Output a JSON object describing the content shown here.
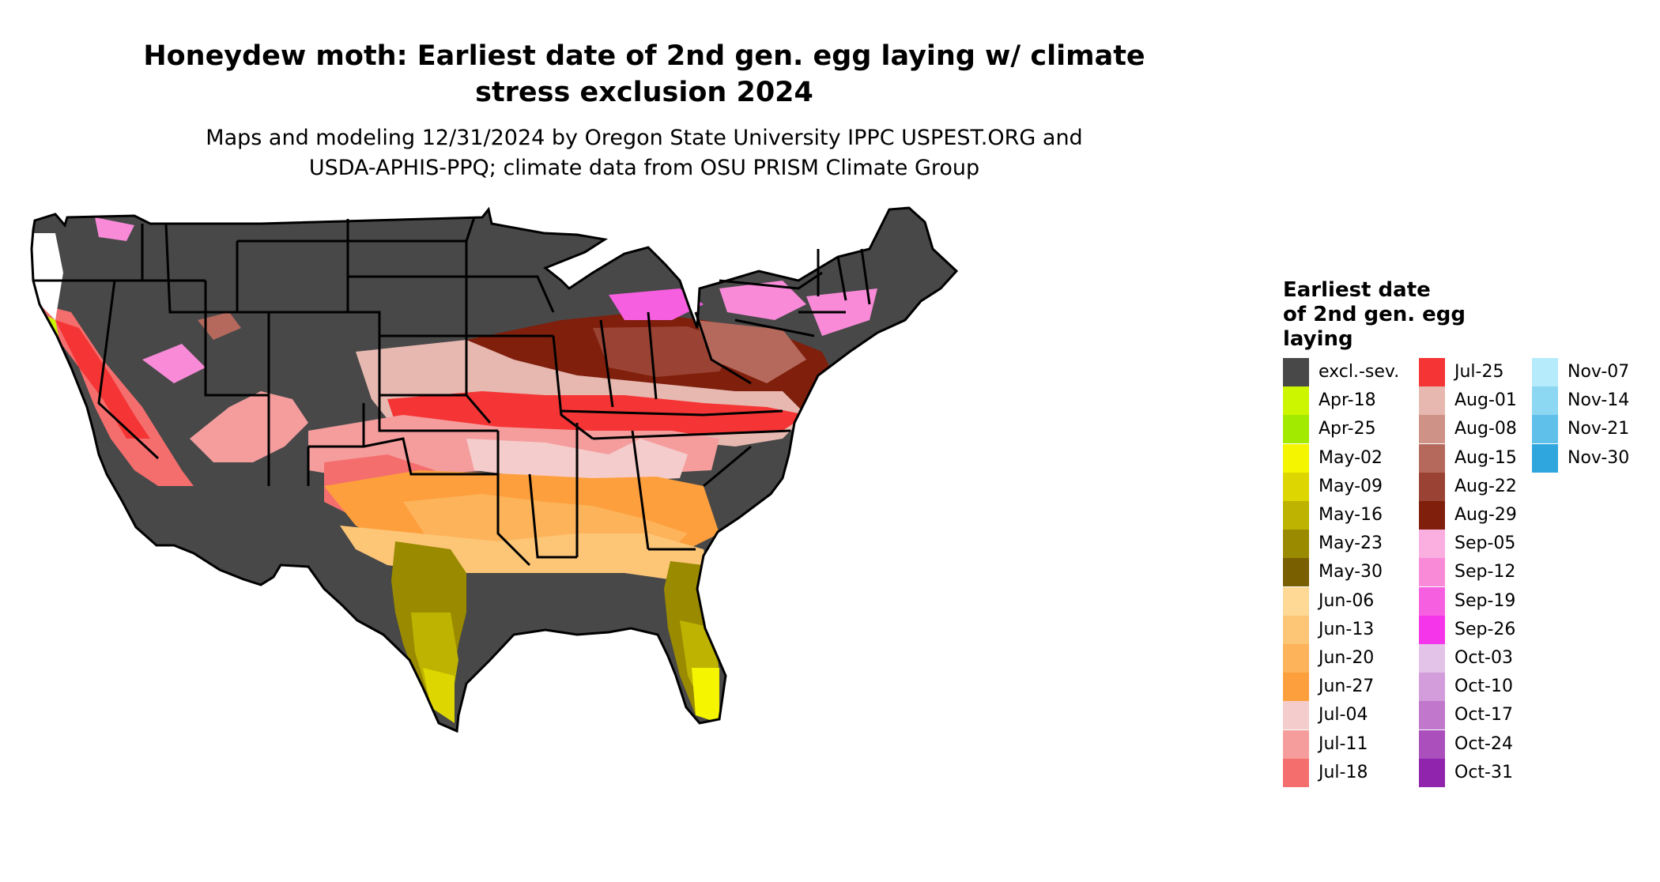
{
  "title_line1": "Honeydew moth: Earliest date of 2nd gen. egg laying w/ climate",
  "title_line2": "stress exclusion 2024",
  "subtitle_line1": "Maps and modeling 12/31/2024 by Oregon State University IPPC USPEST.ORG and",
  "subtitle_line2": "USDA-APHIS-PPQ; climate data from OSU PRISM Climate Group",
  "legend": {
    "title_line1": "Earliest date",
    "title_line2": "of 2nd gen. egg",
    "title_line3": "laying",
    "col1": [
      {
        "label": "excl.-sev.",
        "color": "#484848"
      },
      {
        "label": "Apr-18",
        "color": "#ccf500"
      },
      {
        "label": "Apr-25",
        "color": "#a2ea00"
      },
      {
        "label": "May-02",
        "color": "#f5f500"
      },
      {
        "label": "May-09",
        "color": "#ddd600"
      },
      {
        "label": "May-16",
        "color": "#bdb300"
      },
      {
        "label": "May-23",
        "color": "#9a8a00"
      },
      {
        "label": "May-30",
        "color": "#7a5f00"
      },
      {
        "label": "Jun-06",
        "color": "#fdd995"
      },
      {
        "label": "Jun-13",
        "color": "#fdc677"
      },
      {
        "label": "Jun-20",
        "color": "#fdb35a"
      },
      {
        "label": "Jun-27",
        "color": "#fd9f3d"
      },
      {
        "label": "Jul-04",
        "color": "#f5cccc"
      },
      {
        "label": "Jul-11",
        "color": "#f59d9d"
      },
      {
        "label": "Jul-18",
        "color": "#f56e6e"
      }
    ],
    "col2": [
      {
        "label": "Jul-25",
        "color": "#f53535"
      },
      {
        "label": "Aug-01",
        "color": "#e6b8b0"
      },
      {
        "label": "Aug-08",
        "color": "#cf9286"
      },
      {
        "label": "Aug-15",
        "color": "#b5695c"
      },
      {
        "label": "Aug-22",
        "color": "#9a4334"
      },
      {
        "label": "Aug-29",
        "color": "#7f1f0c"
      },
      {
        "label": "Sep-05",
        "color": "#fbaee0"
      },
      {
        "label": "Sep-12",
        "color": "#f98ad8"
      },
      {
        "label": "Sep-19",
        "color": "#f65fe0"
      },
      {
        "label": "Sep-26",
        "color": "#f535ea"
      },
      {
        "label": "Oct-03",
        "color": "#e4c3e8"
      },
      {
        "label": "Oct-10",
        "color": "#d39ddb"
      },
      {
        "label": "Oct-17",
        "color": "#c077cc"
      },
      {
        "label": "Oct-24",
        "color": "#aa4fbc"
      },
      {
        "label": "Oct-31",
        "color": "#9024ac"
      }
    ],
    "col3": [
      {
        "label": "Nov-07",
        "color": "#b5ebfa"
      },
      {
        "label": "Nov-14",
        "color": "#8cd7f2"
      },
      {
        "label": "Nov-21",
        "color": "#5fc0ea"
      },
      {
        "label": "Nov-30",
        "color": "#2fa6dd"
      }
    ]
  }
}
